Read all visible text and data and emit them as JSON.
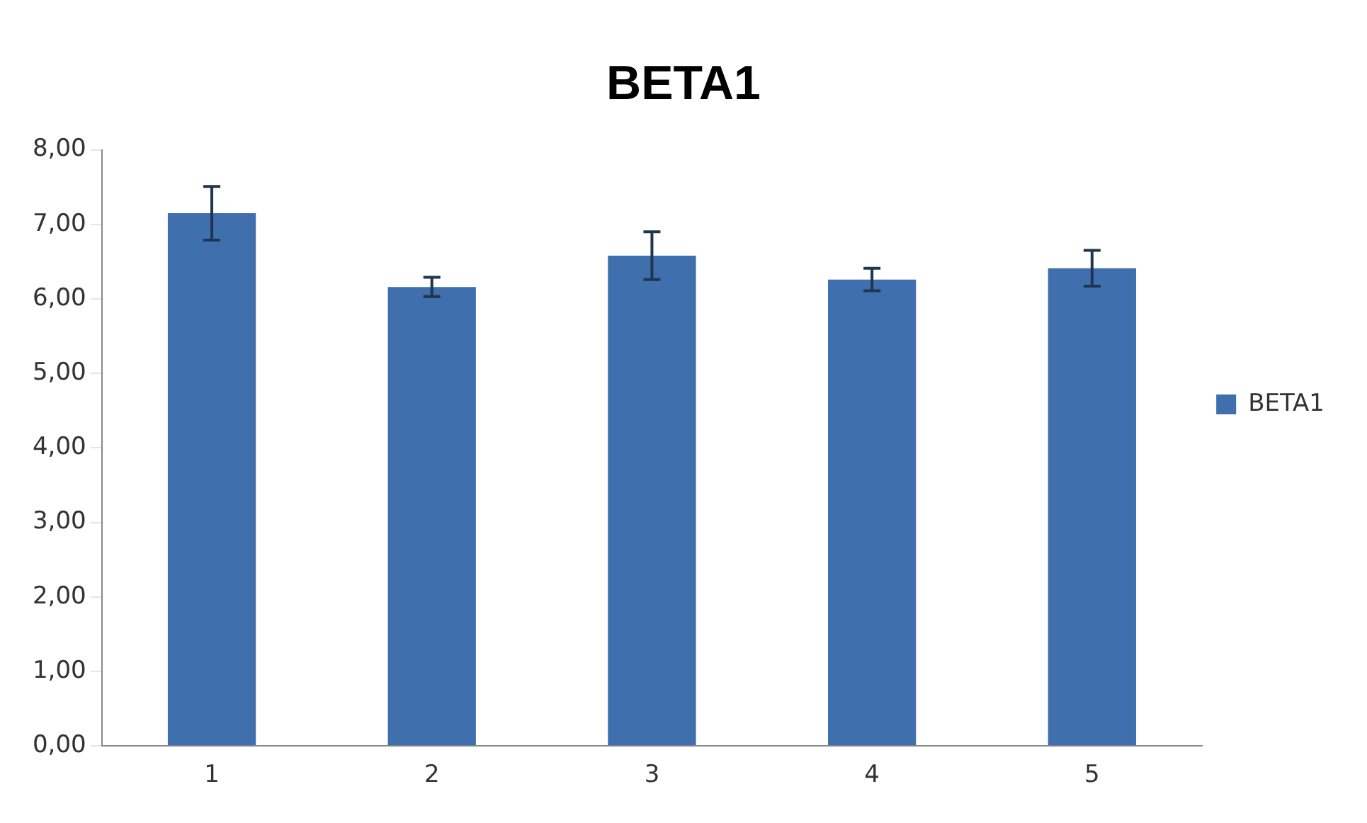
{
  "chart_data": {
    "type": "bar",
    "title": "BETA1",
    "categories": [
      "1",
      "2",
      "3",
      "4",
      "5"
    ],
    "series": [
      {
        "name": "BETA1",
        "color": "#3f6fad",
        "values": [
          7.15,
          6.16,
          6.58,
          6.26,
          6.41
        ],
        "errors": [
          0.36,
          0.13,
          0.32,
          0.15,
          0.24
        ]
      }
    ],
    "ylim": [
      0,
      8
    ],
    "yticks": [
      {
        "value": 0,
        "label": "0,00"
      },
      {
        "value": 1,
        "label": "1,00"
      },
      {
        "value": 2,
        "label": "2,00"
      },
      {
        "value": 3,
        "label": "3,00"
      },
      {
        "value": 4,
        "label": "4,00"
      },
      {
        "value": 5,
        "label": "5,00"
      },
      {
        "value": 6,
        "label": "6,00"
      },
      {
        "value": 7,
        "label": "7,00"
      },
      {
        "value": 8,
        "label": "8,00"
      }
    ],
    "grid": false,
    "legend": "right"
  }
}
